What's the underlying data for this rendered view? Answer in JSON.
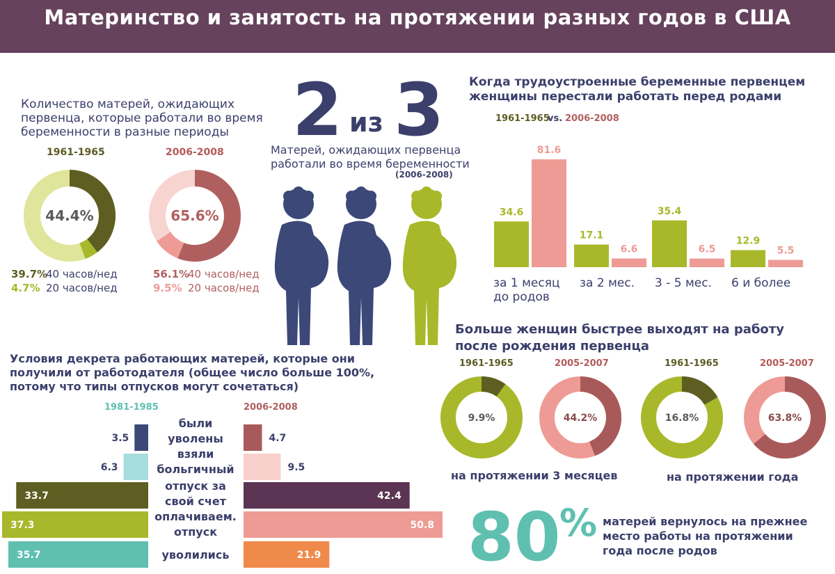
{
  "title": "Материнство и занятость на протяжении разных годов в США",
  "working_during_pregnancy": {
    "title_lines": [
      "Количество матерей, ожидающих",
      "первенца, которые работали во время",
      "беременности в разные периоды"
    ],
    "donuts": [
      {
        "period": "1961-1965",
        "center": "44.4%",
        "total": 44.4,
        "full": 39.7,
        "part": 4.7,
        "full_label": "39.7%",
        "part_label": "4.7%",
        "full_hours": "40 часов/нед",
        "part_hours": "20 часов/нед",
        "colors": {
          "full": "#5e5e22",
          "part": "#a8b82a",
          "rest": "#dfe59a"
        }
      },
      {
        "period": "2006-2008",
        "center": "65.6%",
        "total": 65.6,
        "full": 56.1,
        "part": 9.5,
        "full_label": "56.1%",
        "part_label": "9.5%",
        "full_hours": "40 часов/нед",
        "part_hours": "20 часов/нед",
        "colors": {
          "full": "#b05f5f",
          "part": "#ee9b95",
          "rest": "#f7d4d0"
        }
      }
    ]
  },
  "two_of_three": {
    "big_2": "2",
    "mid": "из",
    "big_3": "3",
    "caption_lines": [
      "Матерей, ожидающих первенца",
      "работали во время беременности"
    ],
    "period": "(2006-2008)",
    "colors": {
      "navy": "#3b4878",
      "green": "#a8b82a"
    }
  },
  "stop_working": {
    "title_lines": [
      "Когда трудоустроенные беременные первенцем",
      "женщины перестали работать перед родами"
    ],
    "legend_a": "1961-1965",
    "legend_vs": "vs.",
    "legend_b": "2006-2008",
    "chart_data": {
      "type": "bar",
      "categories": [
        "за 1 месяц до родов",
        "за 2 мес.",
        "3 - 5 мес.",
        "6 и более"
      ],
      "series": [
        {
          "name": "1961-1965",
          "values": [
            34.6,
            17.1,
            35.4,
            12.9
          ],
          "color": "#a8b82a"
        },
        {
          "name": "2006-2008",
          "values": [
            81.6,
            6.6,
            6.5,
            5.5
          ],
          "color": "#ee9b95"
        }
      ],
      "value_labels_a": [
        "34.6",
        "17.1",
        "35.4",
        "12.9"
      ],
      "value_labels_b": [
        "81.6",
        "6.6",
        "6.5",
        "5.5"
      ],
      "ylim": [
        0,
        81.6
      ]
    },
    "cat_labels": [
      "за 1 месяц",
      "до родов",
      "за 2 мес.",
      "3 - 5 мес.",
      "6 и более"
    ]
  },
  "return_to_work": {
    "title_lines": [
      "Больше женщин быстрее выходят на работу",
      "после рождения первенца"
    ],
    "donuts": [
      {
        "period": "1961-1965",
        "center": "9.9%",
        "value": 9.9,
        "colors": {
          "value": "#5e5e22",
          "rest": "#a8b82a"
        }
      },
      {
        "period": "2005-2007",
        "center": "44.2%",
        "value": 44.2,
        "colors": {
          "value": "#a85a5a",
          "rest": "#ee9b95"
        }
      },
      {
        "period": "1961-1965",
        "center": "16.8%",
        "value": 16.8,
        "colors": {
          "value": "#5e5e22",
          "rest": "#a8b82a"
        }
      },
      {
        "period": "2005-2007",
        "center": "63.8%",
        "value": 63.8,
        "colors": {
          "value": "#a85a5a",
          "rest": "#ee9b95"
        }
      }
    ],
    "caption_3m": "на протяжении 3 месяцев",
    "caption_year": "на протяжении года"
  },
  "leave": {
    "title_lines": [
      "Условия декрета работающих матерей, которые они",
      "получили от работодателя (общее число больше 100%,",
      "потому что типы отпусков могут сочетаться)"
    ],
    "left_period": "1981-1985",
    "right_period": "2006-2008",
    "chart_data": {
      "type": "bar",
      "categories": [
        "были уволены",
        "взяли больгичный",
        "отпуск за свой счет",
        "оплачиваем. отпуск",
        "уволились"
      ],
      "series": [
        {
          "name": "1981-1985",
          "values": [
            3.5,
            6.3,
            33.7,
            37.3,
            35.7
          ],
          "colors": [
            "#3b4878",
            "#a7dcdc",
            "#5e5e22",
            "#a8b82a",
            "#5fc0b0"
          ]
        },
        {
          "name": "2006-2008",
          "values": [
            4.7,
            9.5,
            42.4,
            50.8,
            21.9
          ],
          "colors": [
            "#a85a5a",
            "#f7d0cc",
            "#5b3553",
            "#ee9b95",
            "#f08a4b"
          ]
        }
      ],
      "left_labels": [
        "3.5",
        "6.3",
        "33.7",
        "37.3",
        "35.7"
      ],
      "right_labels": [
        "4.7",
        "9.5",
        "42.4",
        "50.8",
        "21.9"
      ]
    },
    "cat_lines": [
      [
        "были",
        "уволены"
      ],
      [
        "взяли",
        "больгичный"
      ],
      [
        "отпуск за",
        "свой счет"
      ],
      [
        "оплачиваем.",
        "отпуск"
      ],
      [
        "уволились"
      ]
    ]
  },
  "eighty": {
    "number": "80",
    "percent": "%",
    "caption_lines": [
      "матерей вернулось на прежнее",
      "место работы на протяжении",
      "года после родов"
    ],
    "color": "#5fc0b0"
  }
}
